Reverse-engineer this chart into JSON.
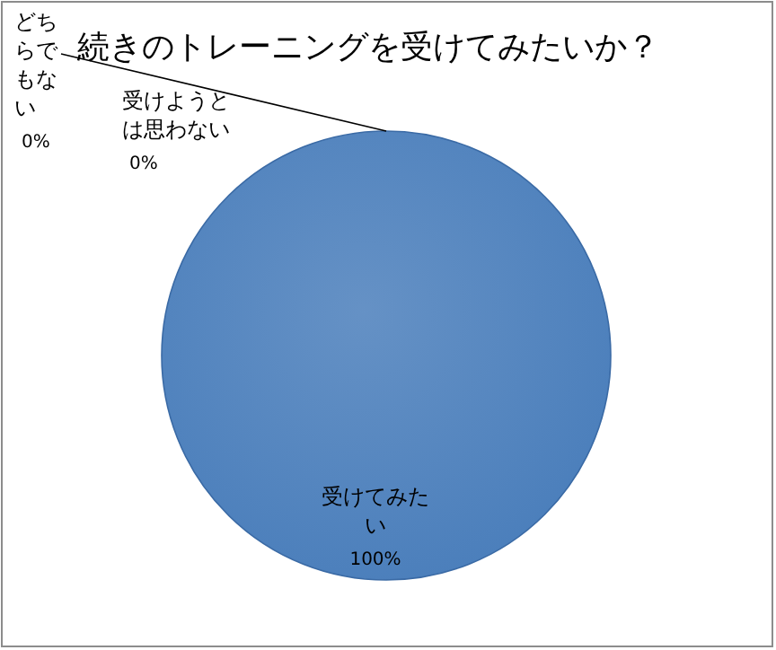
{
  "chart_data": {
    "type": "pie",
    "title": "続きのトレーニングを受けてみたいか？",
    "categories": [
      "受けてみたい",
      "受けようとは思わない",
      "どちらでもない"
    ],
    "values": [
      100,
      0,
      0
    ],
    "colors": [
      "#4a7ebb",
      "#c0504d",
      "#9bbb59"
    ],
    "value_labels": [
      "100%",
      "0%",
      "0%"
    ]
  }
}
